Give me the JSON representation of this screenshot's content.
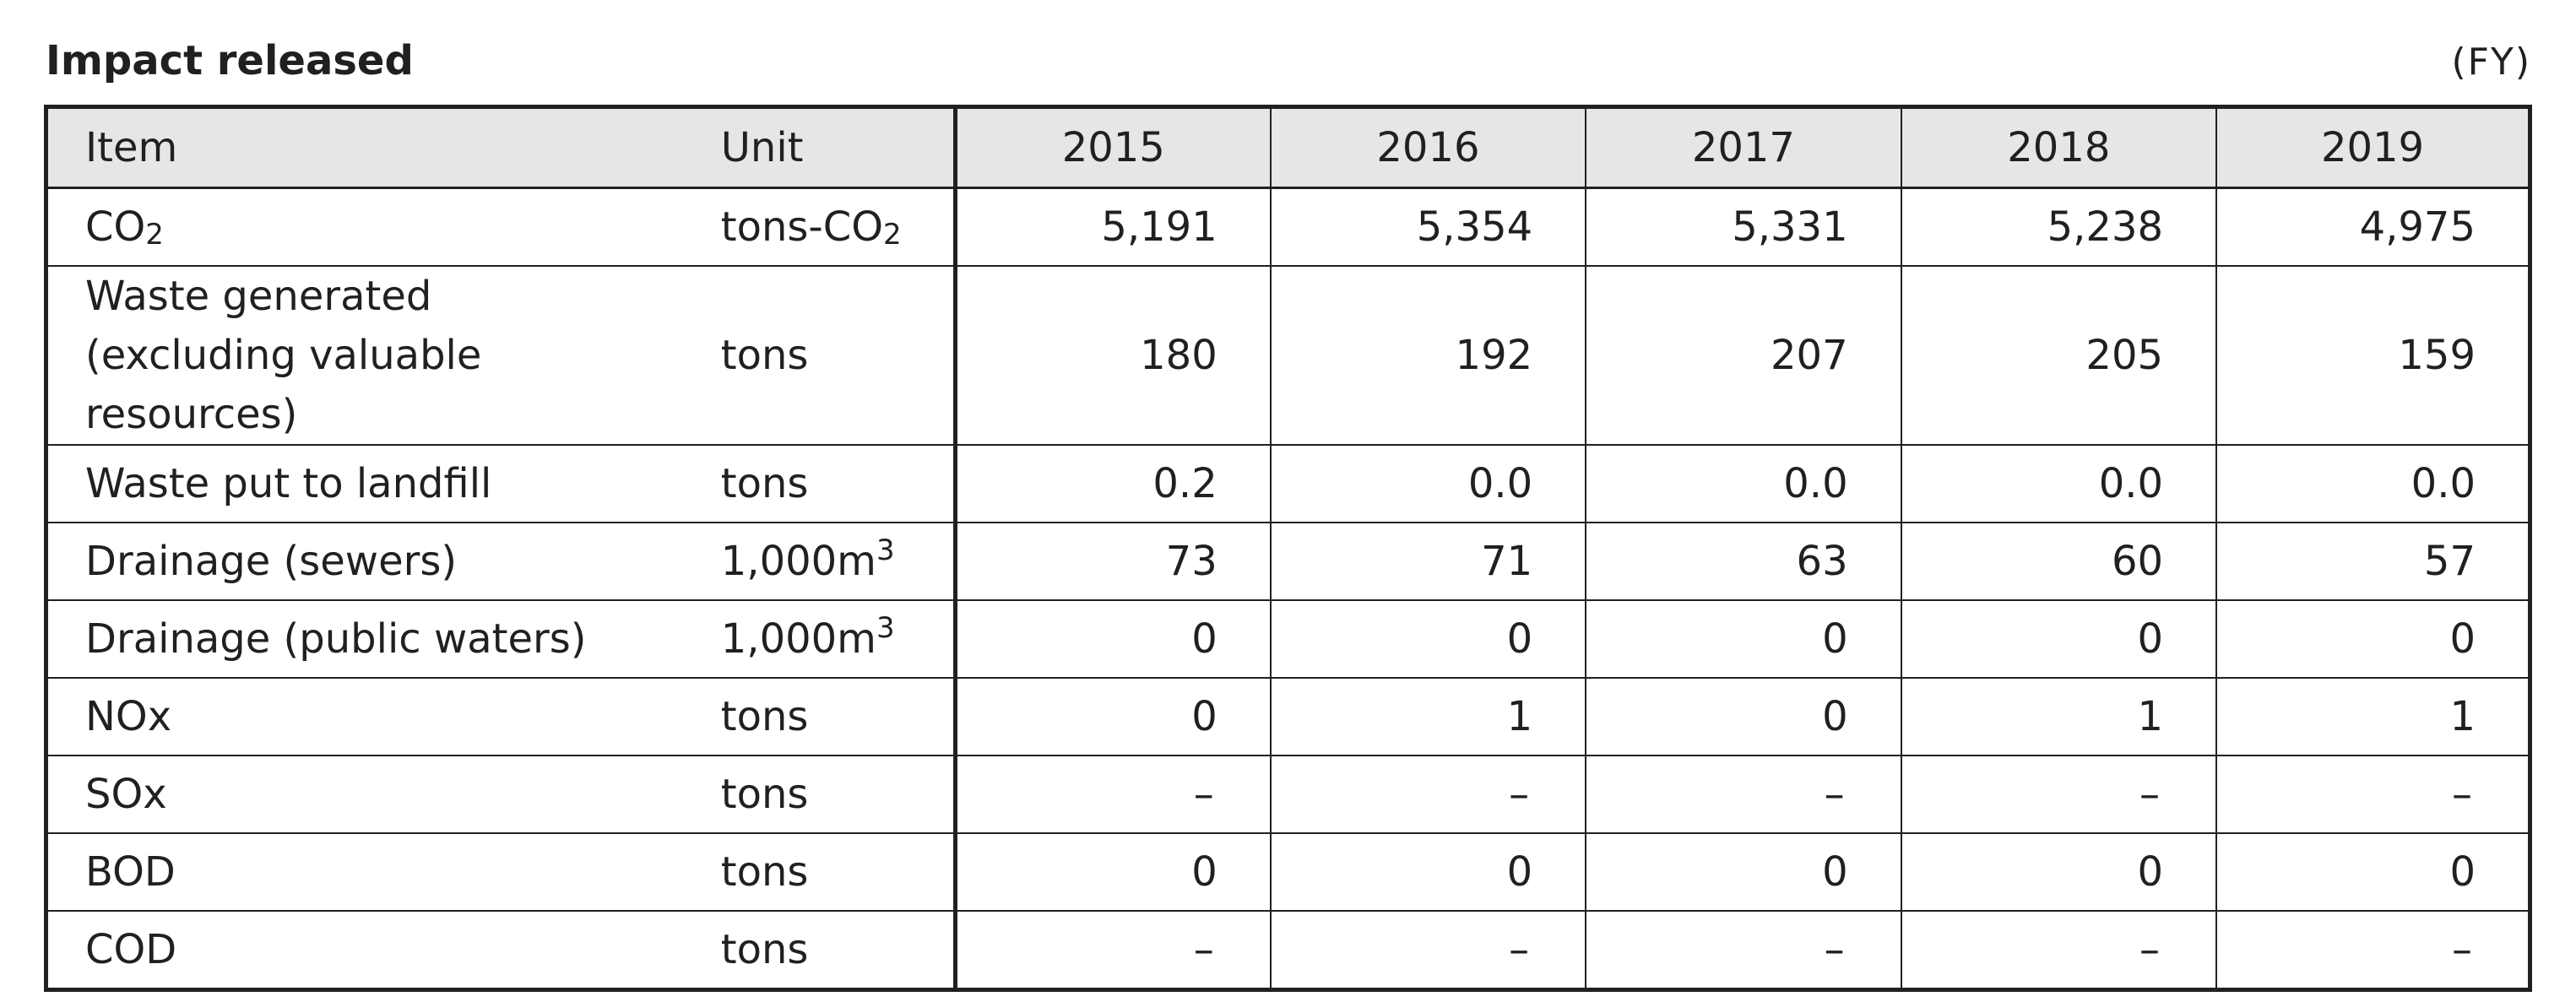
{
  "title": "Impact released",
  "unit_note": "(FY)",
  "table": {
    "header": {
      "item": "Item",
      "unit": "Unit",
      "years": [
        "2015",
        "2016",
        "2017",
        "2018",
        "2019"
      ]
    },
    "rows": [
      {
        "item_base": "CO",
        "item_sub": "2",
        "unit_base": "tons-CO",
        "unit_sub": "2",
        "values": [
          "5,191",
          "5,354",
          "5,331",
          "5,238",
          "4,975"
        ]
      },
      {
        "item_line1": "Waste generated",
        "item_line2": "(excluding valuable resources)",
        "unit": "tons",
        "values": [
          "180",
          "192",
          "207",
          "205",
          "159"
        ]
      },
      {
        "item": "Waste put to landfill",
        "unit": "tons",
        "values": [
          "0.2",
          "0.0",
          "0.0",
          "0.0",
          "0.0"
        ]
      },
      {
        "item": "Drainage (sewers)",
        "unit_base": "1,000m",
        "unit_sup": "3",
        "values": [
          "73",
          "71",
          "63",
          "60",
          "57"
        ]
      },
      {
        "item": "Drainage (public waters)",
        "unit_base": "1,000m",
        "unit_sup": "3",
        "values": [
          "0",
          "0",
          "0",
          "0",
          "0"
        ]
      },
      {
        "item": "NOx",
        "unit": "tons",
        "values": [
          "0",
          "1",
          "0",
          "1",
          "1"
        ]
      },
      {
        "item": "SOx",
        "unit": "tons",
        "values": [
          "–",
          "–",
          "–",
          "–",
          "–"
        ]
      },
      {
        "item": "BOD",
        "unit": "tons",
        "values": [
          "0",
          "0",
          "0",
          "0",
          "0"
        ]
      },
      {
        "item": "COD",
        "unit": "tons",
        "values": [
          "–",
          "–",
          "–",
          "–",
          "–"
        ]
      }
    ]
  }
}
